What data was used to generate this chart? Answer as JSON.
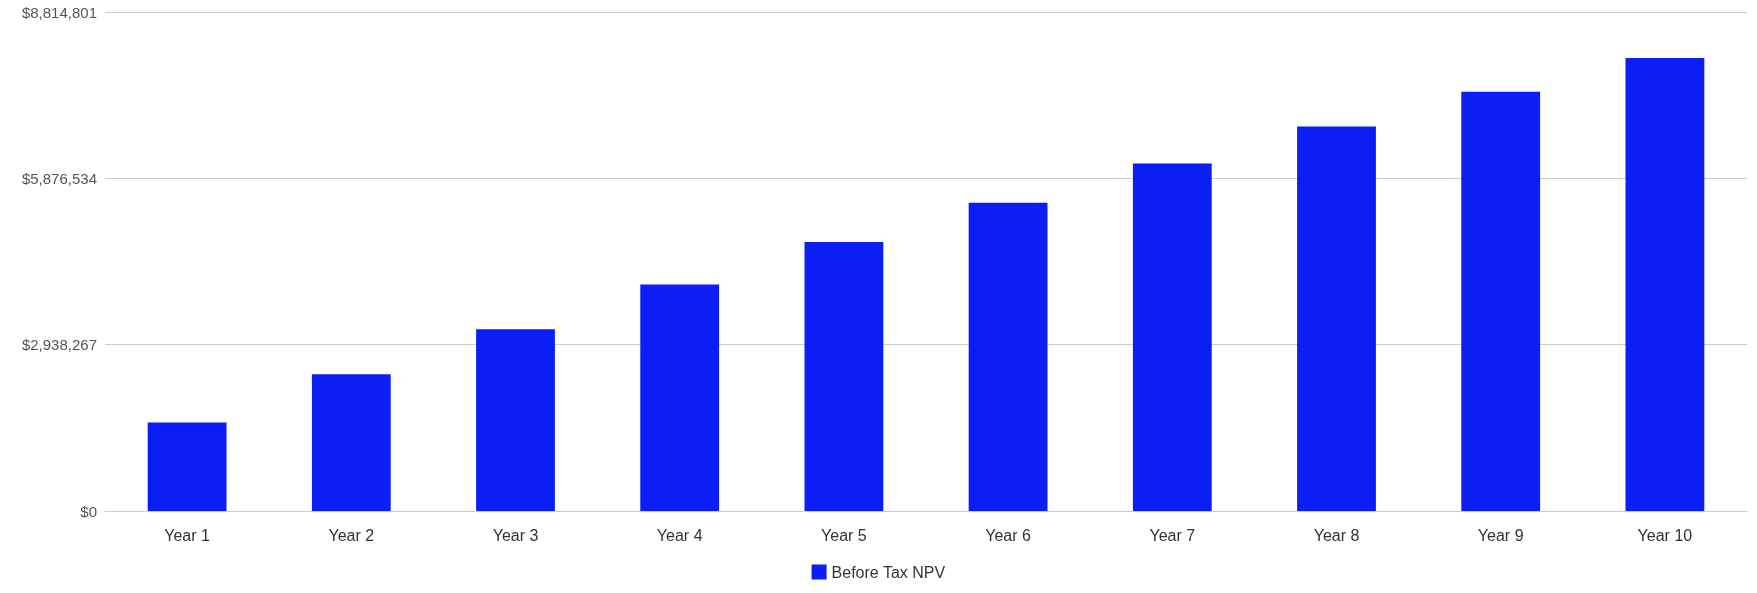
{
  "chart_data": {
    "type": "bar",
    "categories": [
      "Year 1",
      "Year 2",
      "Year 3",
      "Year 4",
      "Year 5",
      "Year 6",
      "Year 7",
      "Year 8",
      "Year 9",
      "Year 10"
    ],
    "series": [
      {
        "name": "Before Tax NPV",
        "color": "#0a1ef5",
        "values": [
          1565000,
          2417000,
          3209000,
          4001000,
          4754000,
          5447000,
          6140000,
          6794000,
          7408000,
          8003000
        ]
      }
    ],
    "ylim": [
      0,
      8814801
    ],
    "yticks": [
      {
        "value": 0,
        "label": "$0"
      },
      {
        "value": 2938267,
        "label": "$2,938,267"
      },
      {
        "value": 5876534,
        "label": "$5,876,534"
      },
      {
        "value": 8814801,
        "label": "$8,814,801"
      }
    ],
    "grid": "y",
    "legend": "bottom"
  }
}
